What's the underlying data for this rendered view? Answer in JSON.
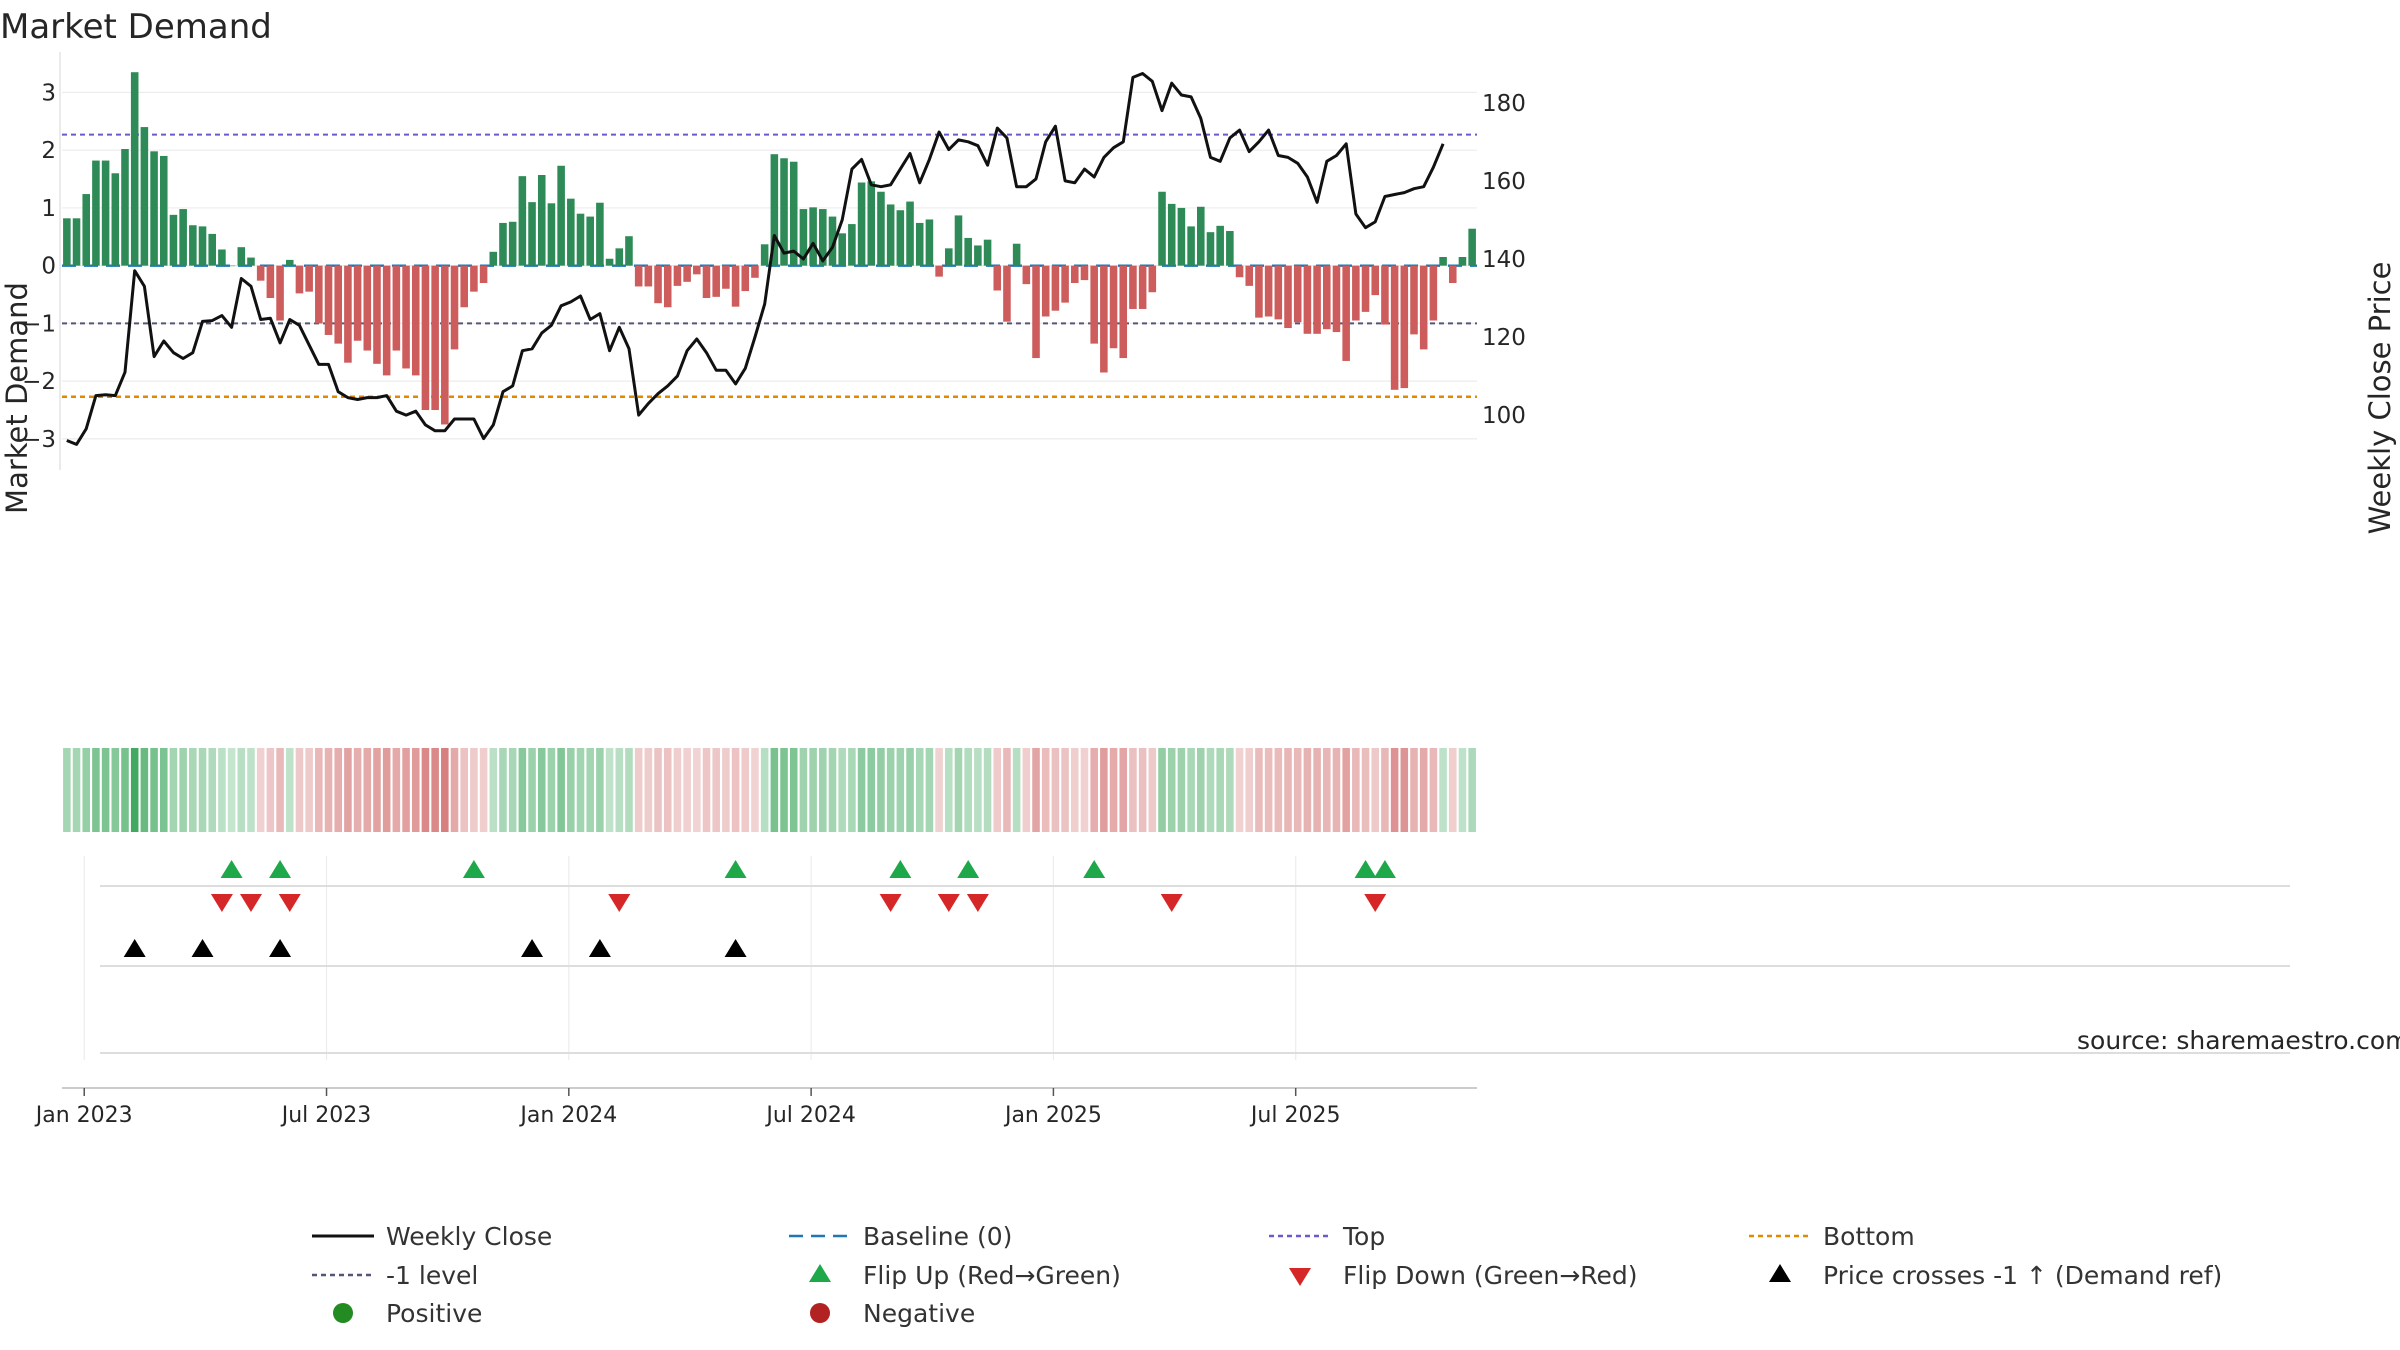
{
  "chart_data": {
    "type": "bar",
    "title": "Market Demand",
    "ylabel": "Market Demand",
    "y2label": "Weekly Close Price",
    "ylim": [
      -3.4,
      3.7
    ],
    "y2lim": [
      88,
      193
    ],
    "yticks": [
      -3,
      -2,
      -1,
      0,
      1,
      2,
      3
    ],
    "ytick_labels": [
      "−3",
      "−2",
      "−1",
      "0",
      "1",
      "2",
      "3"
    ],
    "y2ticks": [
      100,
      120,
      140,
      160,
      180
    ],
    "y2tick_labels": [
      "100",
      "120",
      "140",
      "160",
      "180"
    ],
    "xticks": [
      {
        "week": 2,
        "label": "Jan 2023"
      },
      {
        "week": 27,
        "label": "Jul 2023"
      },
      {
        "week": 52,
        "label": "Jan 2024"
      },
      {
        "week": 77,
        "label": "Jul 2024"
      },
      {
        "week": 102,
        "label": "Jan 2025"
      },
      {
        "week": 127,
        "label": "Jul 2025"
      }
    ],
    "top_level": 2.27,
    "bottom_level": -2.27,
    "minus_one_level": -1,
    "baseline": 0,
    "colors": {
      "positive": "#2e8b57",
      "negative": "#cd5c5c",
      "close": "#111111",
      "baseline": "#1f77b4",
      "top": "#6a5acd",
      "bottom": "#e08a00",
      "minus_one": "#555577",
      "flip_up": "#1fa84a",
      "flip_down": "#d62728",
      "cross": "#000000",
      "positive_dot": "#228b22",
      "negative_dot": "#b22222"
    },
    "demand": [
      0.82,
      0.82,
      1.24,
      1.82,
      1.82,
      1.6,
      2.02,
      3.35,
      2.4,
      1.98,
      1.9,
      0.88,
      0.98,
      0.7,
      0.68,
      0.55,
      0.28,
      0,
      0.32,
      0.14,
      -0.26,
      -0.56,
      -0.95,
      0.1,
      -0.48,
      -0.45,
      -1,
      -1.2,
      -1.35,
      -1.68,
      -1.3,
      -1.47,
      -1.7,
      -1.9,
      -1.47,
      -1.78,
      -1.9,
      -2.5,
      -2.5,
      -2.75,
      -1.45,
      -0.72,
      -0.45,
      -0.3,
      0.24,
      0.74,
      0.76,
      1.55,
      1.1,
      1.57,
      1.08,
      1.73,
      1.16,
      0.9,
      0.85,
      1.09,
      0.12,
      0.3,
      0.51,
      -0.36,
      -0.36,
      -0.65,
      -0.72,
      -0.35,
      -0.28,
      -0.15,
      -0.56,
      -0.54,
      -0.4,
      -0.71,
      -0.44,
      -0.21,
      0.37,
      1.93,
      1.86,
      1.8,
      0.98,
      1.01,
      0.98,
      0.85,
      0.56,
      0.72,
      1.44,
      1.46,
      1.28,
      1.06,
      0.96,
      1.11,
      0.74,
      0.8,
      -0.19,
      0.3,
      0.87,
      0.48,
      0.35,
      0.45,
      -0.43,
      -0.97,
      0.38,
      -0.32,
      -1.6,
      -0.88,
      -0.78,
      -0.64,
      -0.3,
      -0.25,
      -1.35,
      -1.85,
      -1.43,
      -1.6,
      -0.75,
      -0.75,
      -0.46,
      1.28,
      1.07,
      1.0,
      0.68,
      1.02,
      0.58,
      0.69,
      0.6,
      -0.2,
      -0.35,
      -0.9,
      -0.88,
      -0.93,
      -1.08,
      -0.98,
      -1.18,
      -1.18,
      -1.1,
      -1.15,
      -1.65,
      -0.95,
      -0.8,
      -0.51,
      -1.02,
      -2.15,
      -2.12,
      -1.19,
      -1.45,
      -0.95,
      0.15,
      -0.3,
      0.15,
      0.64
    ],
    "close": [
      93.5,
      92.5,
      96.5,
      105,
      105.2,
      105,
      111,
      137,
      133,
      115,
      119,
      116,
      114.5,
      116,
      124,
      124.2,
      125.5,
      122.5,
      135,
      133,
      124.5,
      124.8,
      118.5,
      124.5,
      123,
      118,
      113,
      113,
      106,
      104.5,
      104,
      104.5,
      104.5,
      105,
      101,
      100,
      101,
      97.5,
      96,
      96,
      99,
      99,
      99,
      94,
      97.5,
      106,
      107.5,
      116.5,
      117,
      121,
      123,
      128,
      129,
      130.5,
      124.5,
      126,
      116.5,
      122.5,
      117,
      100,
      103,
      105.5,
      107.5,
      110,
      116.5,
      119.5,
      116,
      111.5,
      111.5,
      108,
      112,
      120,
      128.5,
      146,
      141.5,
      142,
      140,
      144,
      139.5,
      143,
      150,
      163,
      165.5,
      159,
      158.5,
      159,
      163,
      167,
      159.5,
      165.5,
      172.5,
      168,
      170.5,
      170,
      169,
      164,
      173.5,
      171,
      158.5,
      158.5,
      160.5,
      170,
      174,
      160,
      159.5,
      163,
      161,
      166,
      168.5,
      170,
      186.5,
      187.5,
      185.5,
      178,
      185,
      182,
      181.5,
      176,
      166,
      165,
      171,
      173,
      167.5,
      170,
      173,
      166.5,
      166,
      164.5,
      161,
      154.5,
      165,
      166.5,
      169.5,
      151.5,
      148,
      149.5,
      156,
      156.5,
      157,
      158,
      158.5,
      163.5,
      169.5
    ],
    "flip_up_weeks": [
      17,
      22,
      42,
      69,
      86,
      93,
      106,
      134,
      136
    ],
    "flip_down_weeks": [
      16,
      19,
      23,
      57,
      85,
      91,
      94,
      114,
      135
    ],
    "cross_up_weeks": [
      7,
      14,
      22,
      48,
      55,
      69
    ],
    "legend": [
      {
        "key": "close",
        "label": "Weekly Close",
        "marker": "line"
      },
      {
        "key": "baseline",
        "label": "Baseline (0)",
        "marker": "dash"
      },
      {
        "key": "top",
        "label": "Top",
        "marker": "dot"
      },
      {
        "key": "bottom",
        "label": "Bottom",
        "marker": "dot"
      },
      {
        "key": "minus_one",
        "label": "-1 level",
        "marker": "dot"
      },
      {
        "key": "flip_up",
        "label": "Flip Up (Red→Green)",
        "marker": "tri-up"
      },
      {
        "key": "flip_down",
        "label": "Flip Down (Green→Red)",
        "marker": "tri-down"
      },
      {
        "key": "cross",
        "label": "Price crosses -1 ↑ (Demand ref)",
        "marker": "tri-up"
      },
      {
        "key": "positive_dot",
        "label": "Positive",
        "marker": "circle"
      },
      {
        "key": "negative_dot",
        "label": "Negative",
        "marker": "circle"
      }
    ],
    "source": "source: sharemaestro.com"
  }
}
